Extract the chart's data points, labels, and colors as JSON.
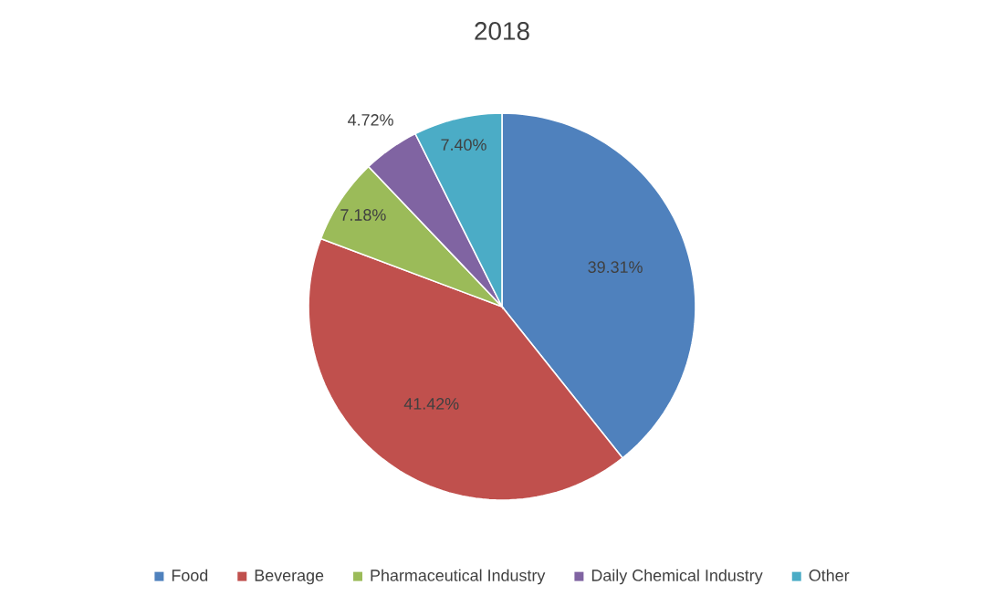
{
  "chart_data": {
    "type": "pie",
    "title": "2018",
    "categories": [
      "Food",
      "Beverage",
      "Pharmaceutical Industry",
      "Daily Chemical Industry",
      "Other"
    ],
    "values": [
      39.31,
      41.42,
      7.18,
      4.72,
      7.4
    ],
    "value_labels": [
      "39.31%",
      "41.42%",
      "7.18%",
      "4.72%",
      "7.40%"
    ],
    "colors": [
      "#4f81bd",
      "#c0504d",
      "#9bbb59",
      "#8064a2",
      "#4bacc6"
    ],
    "legend": "bottom"
  }
}
